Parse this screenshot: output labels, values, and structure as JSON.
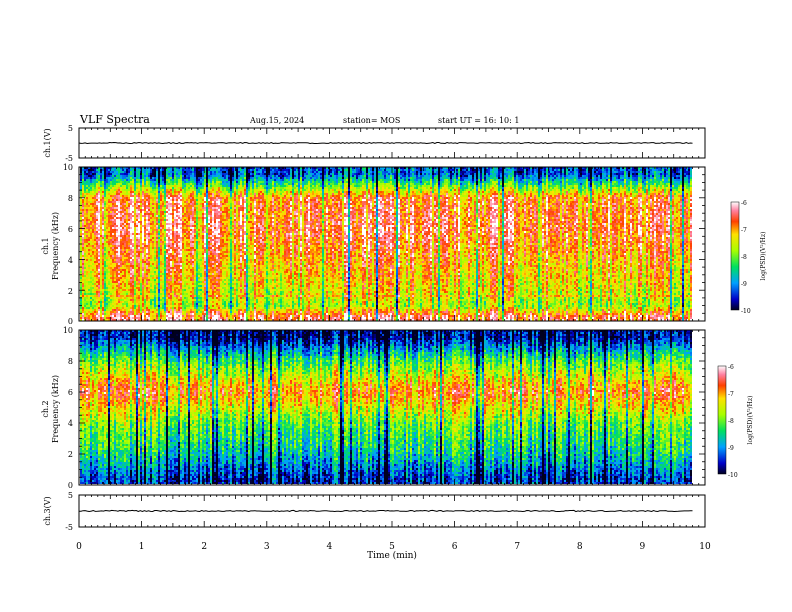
{
  "header": {
    "title": "VLF Spectra",
    "date": "Aug.15, 2024",
    "station": "station= MOS",
    "start_ut": "start  UT =   16: 10: 1"
  },
  "chart_data": [
    {
      "type": "line",
      "panel": "ch1-voltage",
      "ylabel": "ch.1(V)",
      "ylim": [
        -5,
        5
      ],
      "yticks": [
        "5",
        "-5"
      ],
      "x": [
        0,
        1,
        2,
        3,
        4,
        5,
        6,
        7,
        8,
        9,
        9.8
      ],
      "y": [
        0,
        0,
        0,
        0,
        0,
        0,
        0,
        0,
        0,
        0,
        0
      ],
      "color": "#000000"
    },
    {
      "type": "heatmap",
      "panel": "ch1-spectrogram",
      "ylabel": "ch.1\nFrequency (kHz)",
      "ylim": [
        0,
        10
      ],
      "yticks": [
        "0",
        "2",
        "4",
        "6",
        "8",
        "10"
      ],
      "xlim": [
        0,
        9.8
      ],
      "colorbar": {
        "label": "log(PSD)(V²/Hz)",
        "range": [
          -10,
          -6
        ],
        "ticks": [
          "-6",
          "-7",
          "-8",
          "-9",
          "-10"
        ]
      },
      "intensity_profile_by_kHz": [
        {
          "f": 0.3,
          "level": -6.5
        },
        {
          "f": 1,
          "level": -7.8
        },
        {
          "f": 2,
          "level": -7.4
        },
        {
          "f": 4,
          "level": -7.0
        },
        {
          "f": 6,
          "level": -6.6
        },
        {
          "f": 8,
          "level": -6.8
        },
        {
          "f": 9.5,
          "level": -9.3
        }
      ]
    },
    {
      "type": "heatmap",
      "panel": "ch2-spectrogram",
      "ylabel": "ch.2\nFrequency (kHz)",
      "ylim": [
        0,
        10
      ],
      "yticks": [
        "0",
        "2",
        "4",
        "6",
        "8",
        "10"
      ],
      "xlim": [
        0,
        9.8
      ],
      "colorbar": {
        "label": "log(PSD)(V²/Hz)",
        "range": [
          -10,
          -6
        ],
        "ticks": [
          "-6",
          "-7",
          "-8",
          "-9",
          "-10"
        ]
      },
      "intensity_profile_by_kHz": [
        {
          "f": 0.3,
          "level": -9.5
        },
        {
          "f": 2,
          "level": -8.6
        },
        {
          "f": 4,
          "level": -8.0
        },
        {
          "f": 6,
          "level": -6.8
        },
        {
          "f": 8,
          "level": -8.2
        },
        {
          "f": 9.5,
          "level": -9.7
        }
      ]
    },
    {
      "type": "line",
      "panel": "ch3-voltage",
      "ylabel": "ch.3(V)",
      "ylim": [
        -5,
        5
      ],
      "yticks": [
        "5",
        "-5"
      ],
      "x": [
        0,
        1,
        2,
        3,
        4,
        5,
        6,
        7,
        8,
        9,
        9.8
      ],
      "y": [
        0,
        0,
        0,
        0,
        0,
        0,
        0,
        0,
        0,
        0,
        0
      ],
      "color": "#000000",
      "xlabel": "Time  (min)",
      "xlim": [
        0,
        10
      ],
      "xticks": [
        "0",
        "1",
        "2",
        "3",
        "4",
        "5",
        "6",
        "7",
        "8",
        "9",
        "10"
      ]
    }
  ]
}
